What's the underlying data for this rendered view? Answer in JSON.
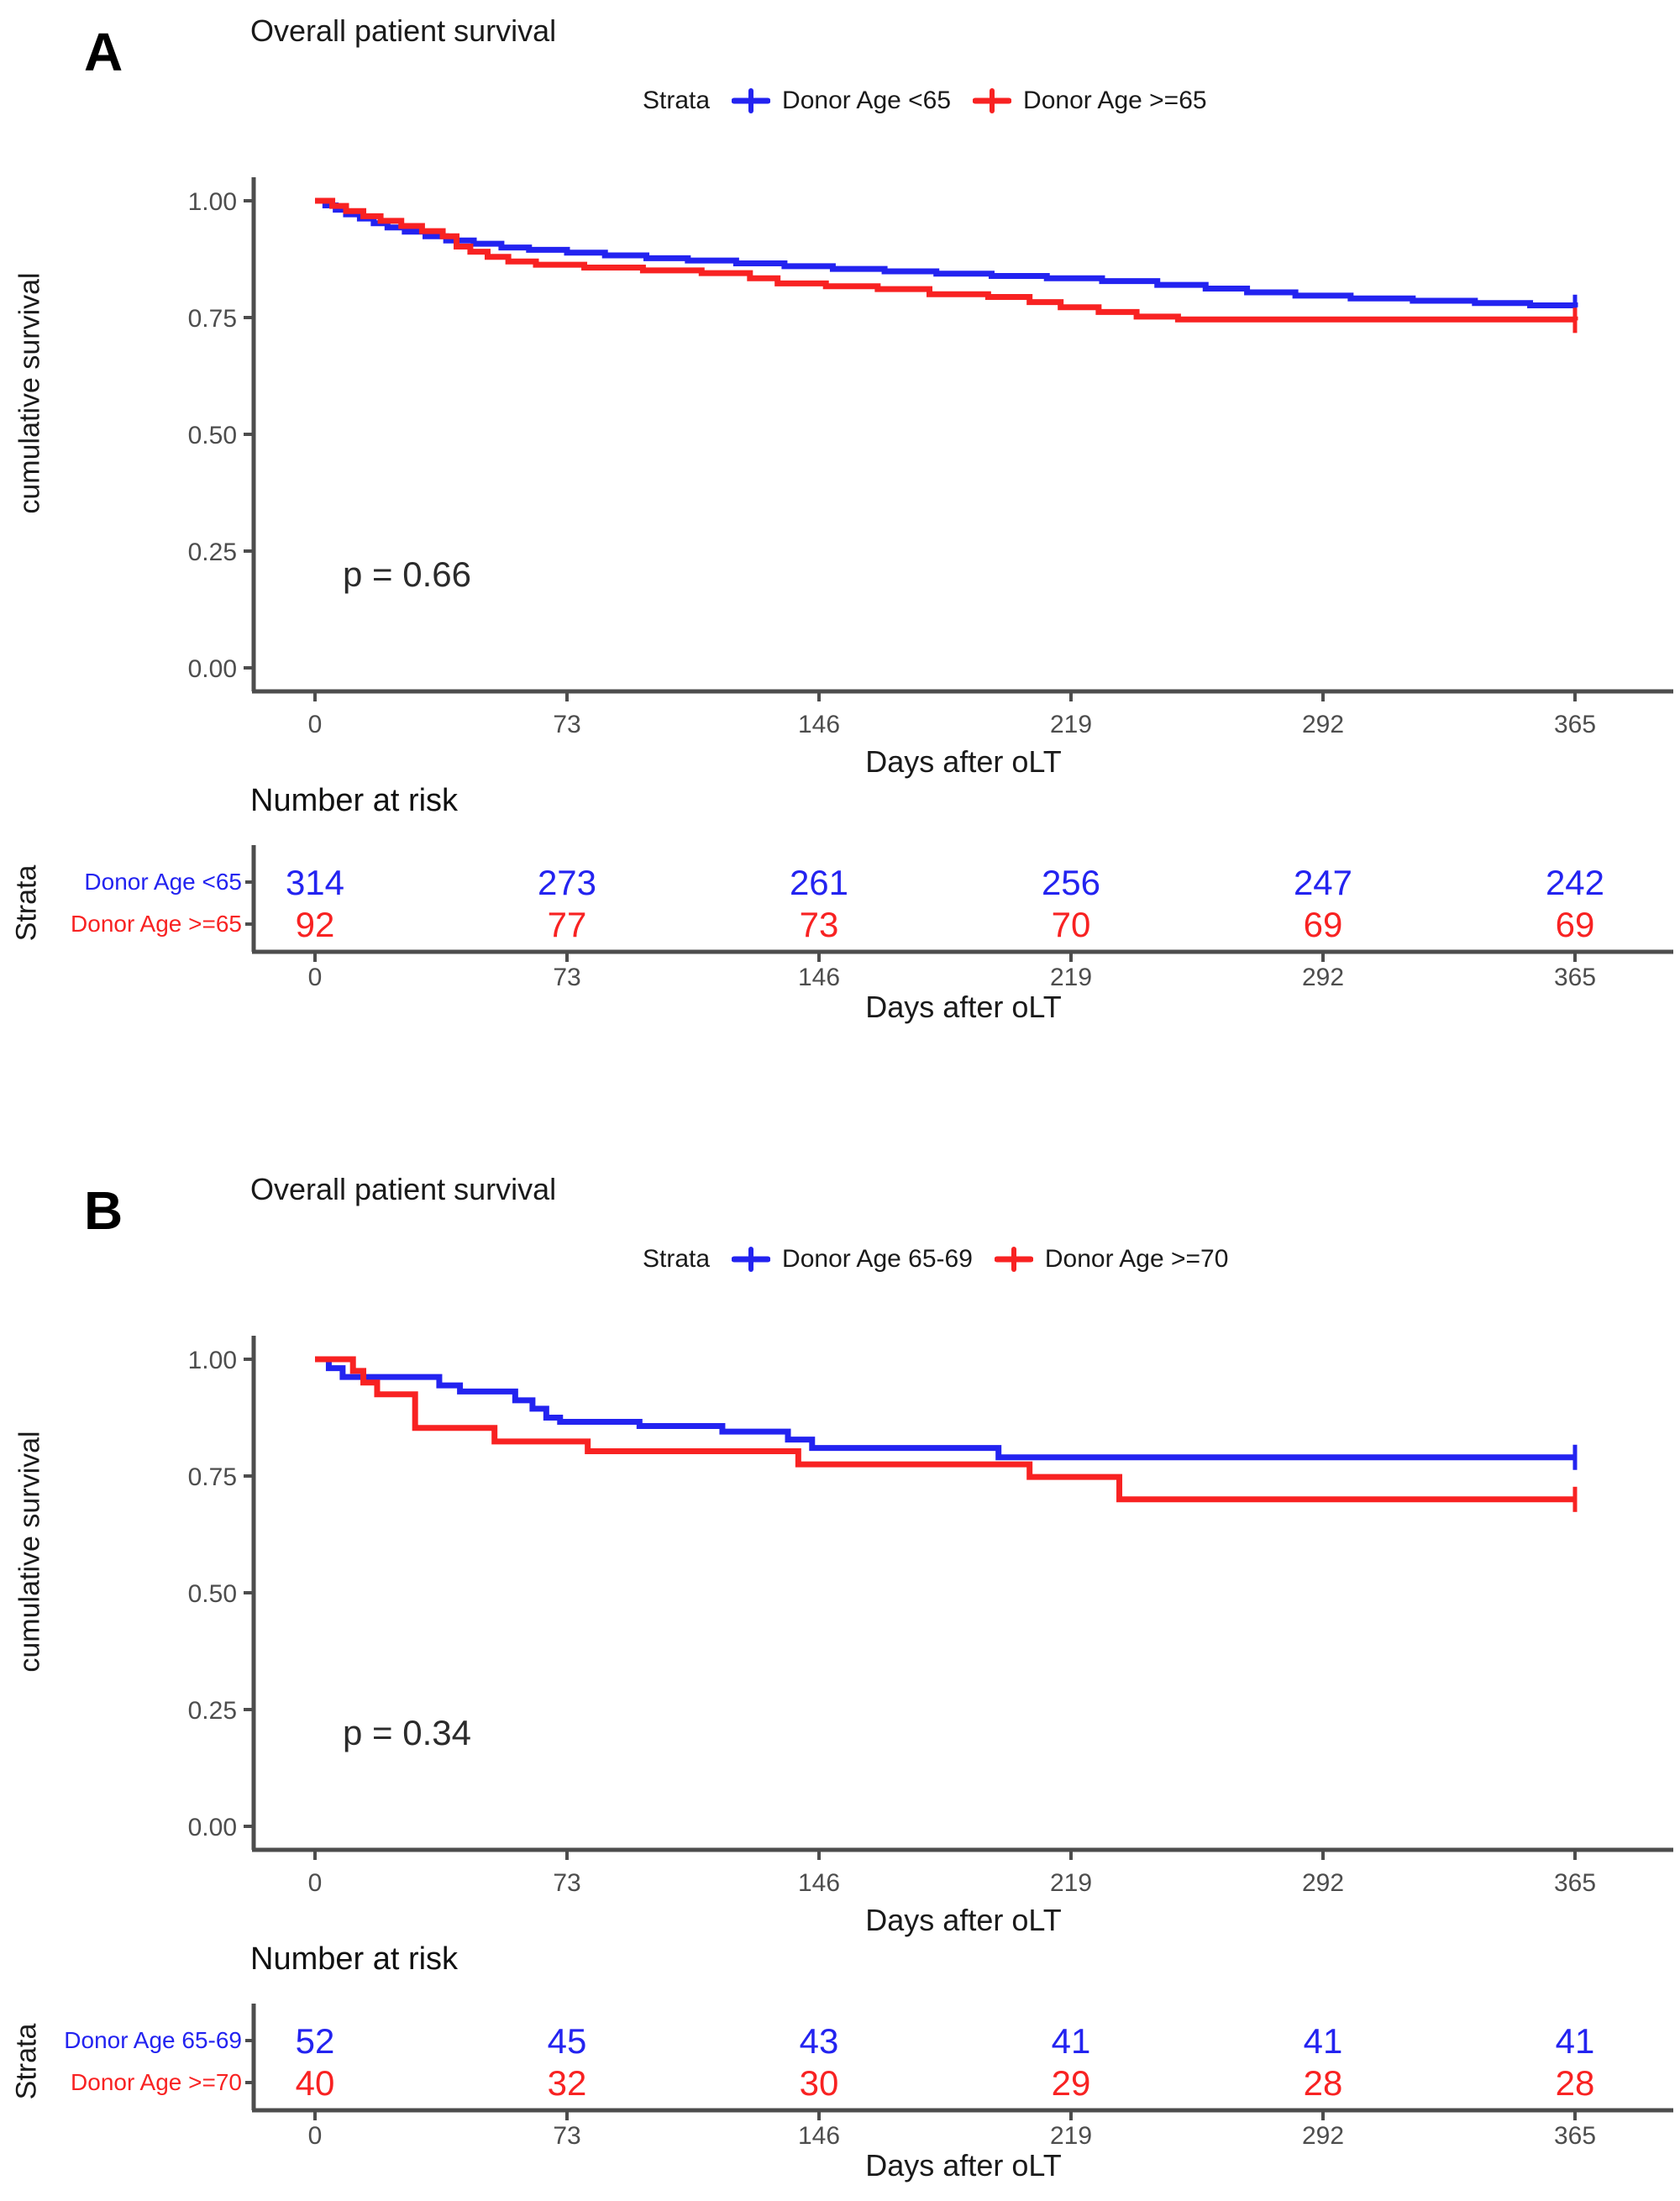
{
  "figure": {
    "background": "#ffffff",
    "colors": {
      "blue": "#2323f0",
      "red": "#f82222",
      "axis": "#4d4d4d",
      "tick_label": "#4d4d4d",
      "text": "#1a1a1a"
    }
  },
  "chart_data": [
    {
      "type": "line",
      "subtype": "kaplan-meier-step",
      "panel_label": "A",
      "title": "Overall patient survival",
      "legend_title": "Strata",
      "legend_position": "top",
      "xlabel": "Days after oLT",
      "ylabel": "cumulative survival",
      "p_value": "p = 0.66",
      "xlim": [
        0,
        365
      ],
      "ylim": [
        0,
        1
      ],
      "x_ticks": [
        0,
        73,
        146,
        219,
        292,
        365
      ],
      "y_ticks": [
        {
          "value": 1.0,
          "label": "1.00"
        },
        {
          "value": 0.75,
          "label": "0.75"
        },
        {
          "value": 0.5,
          "label": "0.50"
        },
        {
          "value": 0.25,
          "label": "0.25"
        },
        {
          "value": 0.0,
          "label": "0.00"
        }
      ],
      "series": [
        {
          "name": "Donor Age <65",
          "color_key": "blue",
          "censored_at_end": true,
          "steps": [
            [
              0,
              1.0
            ],
            [
              3,
              0.99
            ],
            [
              6,
              0.981
            ],
            [
              9,
              0.971
            ],
            [
              13,
              0.962
            ],
            [
              17,
              0.952
            ],
            [
              21,
              0.943
            ],
            [
              26,
              0.934
            ],
            [
              32,
              0.924
            ],
            [
              38,
              0.915
            ],
            [
              46,
              0.908
            ],
            [
              54,
              0.9
            ],
            [
              62,
              0.895
            ],
            [
              73,
              0.889
            ],
            [
              84,
              0.883
            ],
            [
              96,
              0.877
            ],
            [
              108,
              0.872
            ],
            [
              122,
              0.866
            ],
            [
              136,
              0.86
            ],
            [
              150,
              0.854
            ],
            [
              165,
              0.849
            ],
            [
              180,
              0.844
            ],
            [
              196,
              0.839
            ],
            [
              212,
              0.834
            ],
            [
              228,
              0.828
            ],
            [
              244,
              0.82
            ],
            [
              258,
              0.812
            ],
            [
              270,
              0.804
            ],
            [
              284,
              0.797
            ],
            [
              300,
              0.791
            ],
            [
              318,
              0.786
            ],
            [
              336,
              0.781
            ],
            [
              352,
              0.776
            ],
            [
              365,
              0.772
            ]
          ]
        },
        {
          "name": "Donor Age >=65",
          "color_key": "red",
          "censored_at_end": true,
          "steps": [
            [
              0,
              1.0
            ],
            [
              5,
              0.989
            ],
            [
              9,
              0.978
            ],
            [
              14,
              0.967
            ],
            [
              19,
              0.957
            ],
            [
              25,
              0.946
            ],
            [
              31,
              0.935
            ],
            [
              37,
              0.924
            ],
            [
              41,
              0.902
            ],
            [
              45,
              0.891
            ],
            [
              50,
              0.88
            ],
            [
              56,
              0.87
            ],
            [
              64,
              0.863
            ],
            [
              78,
              0.857
            ],
            [
              95,
              0.851
            ],
            [
              112,
              0.845
            ],
            [
              126,
              0.834
            ],
            [
              134,
              0.823
            ],
            [
              148,
              0.817
            ],
            [
              163,
              0.811
            ],
            [
              178,
              0.8
            ],
            [
              195,
              0.794
            ],
            [
              207,
              0.783
            ],
            [
              216,
              0.772
            ],
            [
              227,
              0.762
            ],
            [
              238,
              0.752
            ],
            [
              250,
              0.746
            ],
            [
              365,
              0.744
            ]
          ]
        }
      ],
      "risk_table": {
        "title": "Number at risk",
        "axis_label": "Strata",
        "xlabel": "Days after oLT",
        "x_ticks": [
          0,
          73,
          146,
          219,
          292,
          365
        ],
        "rows": [
          {
            "name": "Donor Age <65",
            "color_key": "blue",
            "values": [
              314,
              273,
              261,
              256,
              247,
              242
            ]
          },
          {
            "name": "Donor Age >=65",
            "color_key": "red",
            "values": [
              92,
              77,
              73,
              70,
              69,
              69
            ]
          }
        ]
      }
    },
    {
      "type": "line",
      "subtype": "kaplan-meier-step",
      "panel_label": "B",
      "title": "Overall patient survival",
      "legend_title": "Strata",
      "legend_position": "top",
      "xlabel": "Days after oLT",
      "ylabel": "cumulative survival",
      "p_value": "p = 0.34",
      "xlim": [
        0,
        365
      ],
      "ylim": [
        0,
        1
      ],
      "x_ticks": [
        0,
        73,
        146,
        219,
        292,
        365
      ],
      "y_ticks": [
        {
          "value": 1.0,
          "label": "1.00"
        },
        {
          "value": 0.75,
          "label": "0.75"
        },
        {
          "value": 0.5,
          "label": "0.50"
        },
        {
          "value": 0.25,
          "label": "0.25"
        },
        {
          "value": 0.0,
          "label": "0.00"
        }
      ],
      "series": [
        {
          "name": "Donor Age 65-69",
          "color_key": "blue",
          "censored_at_end": true,
          "steps": [
            [
              0,
              1.0
            ],
            [
              4,
              0.981
            ],
            [
              8,
              0.962
            ],
            [
              36,
              0.944
            ],
            [
              42,
              0.931
            ],
            [
              58,
              0.912
            ],
            [
              63,
              0.894
            ],
            [
              67,
              0.875
            ],
            [
              71,
              0.866
            ],
            [
              94,
              0.857
            ],
            [
              118,
              0.845
            ],
            [
              137,
              0.828
            ],
            [
              144,
              0.81
            ],
            [
              198,
              0.79
            ],
            [
              365,
              0.79
            ]
          ]
        },
        {
          "name": "Donor Age >=70",
          "color_key": "red",
          "censored_at_end": true,
          "steps": [
            [
              0,
              1.0
            ],
            [
              11,
              0.975
            ],
            [
              14,
              0.95
            ],
            [
              18,
              0.925
            ],
            [
              29,
              0.853
            ],
            [
              52,
              0.824
            ],
            [
              79,
              0.803
            ],
            [
              140,
              0.775
            ],
            [
              207,
              0.748
            ],
            [
              233,
              0.7
            ],
            [
              365,
              0.7
            ]
          ]
        }
      ],
      "risk_table": {
        "title": "Number at risk",
        "axis_label": "Strata",
        "xlabel": "Days after oLT",
        "x_ticks": [
          0,
          73,
          146,
          219,
          292,
          365
        ],
        "rows": [
          {
            "name": "Donor Age 65-69",
            "color_key": "blue",
            "values": [
              52,
              45,
              43,
              41,
              41,
              41
            ]
          },
          {
            "name": "Donor Age >=70",
            "color_key": "red",
            "values": [
              40,
              32,
              30,
              29,
              28,
              28
            ]
          }
        ]
      }
    }
  ]
}
